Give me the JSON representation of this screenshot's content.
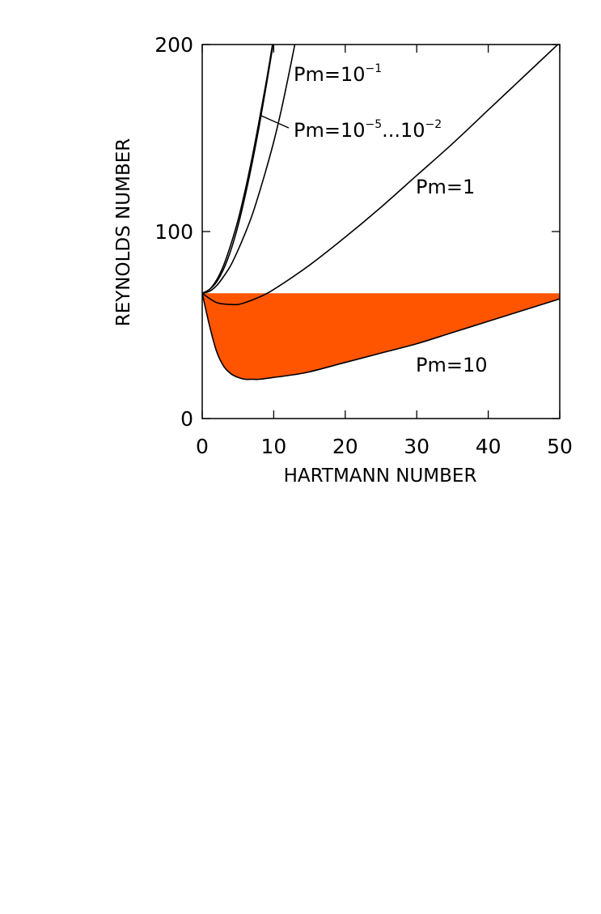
{
  "chart_data": {
    "type": "line",
    "xlabel": "HARTMANN NUMBER",
    "ylabel": "REYNOLDS NUMBER",
    "xlim": [
      0,
      50
    ],
    "ylim": [
      0,
      200
    ],
    "x_ticks": [
      "0",
      "10",
      "20",
      "30",
      "40",
      "50"
    ],
    "y_ticks": [
      "0",
      "100",
      "200"
    ],
    "grid": false,
    "fill_color": "#FF5500",
    "line_color": "#000000",
    "series": [
      {
        "label": {
          "base": "Pm=10",
          "exp": "−5",
          "mid": "...10",
          "exp2": "−2"
        },
        "curves": [
          {
            "x": [
              0,
              1,
              2,
              3,
              4,
              5,
              6,
              7,
              8,
              9,
              10
            ],
            "y": [
              67,
              69,
              74,
              82,
              93,
              106,
              122,
              140,
              160,
              181,
              204
            ]
          },
          {
            "x": [
              0,
              1,
              2,
              3,
              4,
              5,
              6,
              7,
              8,
              9,
              10
            ],
            "y": [
              67,
              69,
              73,
              80,
              90,
              103,
              119,
              137,
              157,
              179,
              202
            ]
          }
        ]
      },
      {
        "label": {
          "base": "Pm=10",
          "exp": "−1"
        },
        "curves": [
          {
            "x": [
              0,
              1,
              2,
              3,
              4,
              5,
              6,
              7,
              8,
              9,
              10,
              11,
              12,
              13
            ],
            "y": [
              67,
              68,
              71,
              76,
              82,
              90,
              99,
              109,
              121,
              134,
              148,
              164,
              182,
              201
            ]
          }
        ]
      },
      {
        "label": {
          "base": "Pm=1"
        },
        "curves": [
          {
            "x": [
              0,
              2,
              4,
              5,
              6,
              8,
              10,
              15,
              20,
              25,
              30,
              35,
              40,
              45,
              50
            ],
            "y": [
              67,
              62,
              61,
              61,
              62,
              65,
              69,
              82,
              97,
              113,
              130,
              147,
              165,
              183,
              201
            ]
          }
        ]
      },
      {
        "label": {
          "base": "Pm=10"
        },
        "curves": [
          {
            "x": [
              0,
              1,
              2,
              3,
              4,
              5,
              6,
              7,
              8,
              10,
              12,
              15,
              20,
              25,
              30,
              35,
              40,
              45,
              50
            ],
            "y": [
              67,
              50,
              36,
              28,
              24,
              22,
              21,
              21,
              21,
              22,
              23,
              25,
              30,
              35,
              40,
              46,
              52,
              58,
              64
            ]
          }
        ],
        "filled_below": 67
      }
    ]
  }
}
